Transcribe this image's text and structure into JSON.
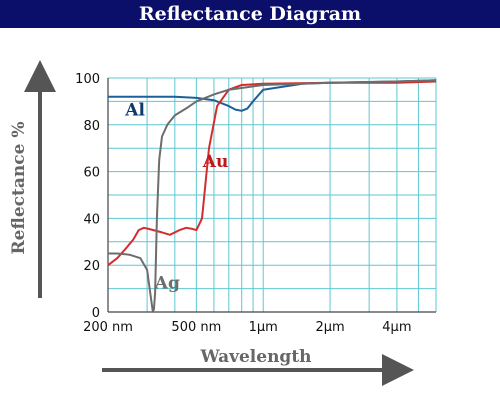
{
  "title": "Reflectance Diagram",
  "colors": {
    "title_bg": "#0b0f6a",
    "grid": "#5ec7d2",
    "axis": "#555555",
    "Al": "#1e5f9a",
    "Au": "#d42d2d",
    "Ag": "#6d6d6d"
  },
  "chart_data": {
    "type": "line",
    "title": "Reflectance Diagram",
    "xlabel": "Wavelength",
    "ylabel": "Reflectance %",
    "xscale": "log",
    "xlim": [
      200,
      6000
    ],
    "ylim": [
      0,
      100
    ],
    "grid": true,
    "y_ticks": [
      0,
      20,
      40,
      60,
      80,
      100
    ],
    "x_tick_labels": [
      {
        "value": 200,
        "label": "200 nm"
      },
      {
        "value": 500,
        "label": "500 nm"
      },
      {
        "value": 1000,
        "label": "1μm"
      },
      {
        "value": 2000,
        "label": "2μm"
      },
      {
        "value": 4000,
        "label": "4μm"
      }
    ],
    "series": [
      {
        "name": "Al",
        "color": "#1e5f9a",
        "x": [
          200,
          300,
          400,
          500,
          600,
          700,
          750,
          800,
          850,
          900,
          1000,
          1500,
          2000,
          4000,
          6000
        ],
        "y": [
          92,
          92,
          92,
          91.5,
          90.5,
          88,
          86.5,
          86,
          87,
          90,
          95,
          97.5,
          98,
          98.5,
          99
        ]
      },
      {
        "name": "Au",
        "color": "#d42d2d",
        "x": [
          200,
          220,
          240,
          260,
          275,
          290,
          305,
          320,
          350,
          380,
          420,
          450,
          480,
          500,
          530,
          570,
          620,
          700,
          800,
          1000,
          2000,
          4000,
          6000
        ],
        "y": [
          20,
          23,
          27,
          31,
          35,
          36,
          35.5,
          35,
          34,
          33,
          35,
          36,
          35.5,
          35,
          40,
          70,
          88,
          95,
          97,
          97.5,
          98,
          98,
          98.5
        ]
      },
      {
        "name": "Ag",
        "color": "#6d6d6d",
        "x": [
          200,
          220,
          250,
          280,
          300,
          310,
          318,
          322,
          326,
          332,
          340,
          350,
          370,
          400,
          450,
          500,
          600,
          700,
          1000,
          2000,
          4000,
          6000
        ],
        "y": [
          25,
          25,
          24.5,
          23,
          18,
          8,
          0.5,
          1,
          8,
          40,
          65,
          75,
          80,
          84,
          87,
          90,
          93,
          95,
          97,
          98,
          98.5,
          99
        ]
      }
    ],
    "annotations": [
      {
        "text": "Al",
        "x": 265,
        "y": 84
      },
      {
        "text": "Au",
        "x": 610,
        "y": 62
      },
      {
        "text": "Ag",
        "x": 370,
        "y": 10
      }
    ]
  }
}
